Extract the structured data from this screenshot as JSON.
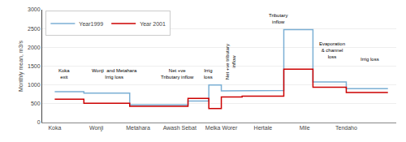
{
  "chart_data": {
    "type": "line",
    "x": [
      0,
      0.7,
      0.7,
      1.8,
      1.8,
      3.2,
      3.2,
      3.7,
      3.7,
      4.0,
      4.0,
      4.5,
      4.5,
      5.5,
      5.5,
      6.2,
      6.2,
      7.0,
      7.0,
      8.0
    ],
    "series": [
      {
        "name": "Year1999",
        "color": "#7bafd4",
        "values": [
          820,
          820,
          780,
          780,
          470,
          470,
          570,
          570,
          1000,
          1000,
          840,
          840,
          850,
          850,
          2470,
          2470,
          1080,
          1080,
          900,
          900
        ]
      },
      {
        "name": "Year 2001",
        "color": "#cc0000",
        "values": [
          620,
          620,
          510,
          510,
          430,
          430,
          640,
          640,
          370,
          370,
          680,
          680,
          700,
          700,
          1420,
          1420,
          940,
          940,
          800,
          800
        ]
      }
    ],
    "ylabel": "Monthly mean, m3/s",
    "ylim": [
      0,
      3000
    ],
    "yticks": [
      0,
      500,
      1000,
      1500,
      2000,
      2500,
      3000
    ],
    "xlim": [
      -0.3,
      8.2
    ],
    "xticks": [
      {
        "value": 0,
        "label": "Koka"
      },
      {
        "value": 1,
        "label": "Wonji"
      },
      {
        "value": 2,
        "label": "Metahara"
      },
      {
        "value": 3,
        "label": "Awash Sebat"
      },
      {
        "value": 4,
        "label": "Melka Worer"
      },
      {
        "value": 5,
        "label": "Hertale"
      },
      {
        "value": 6,
        "label": "Mile"
      },
      {
        "value": 7,
        "label": "Tendaho"
      }
    ],
    "annotations": [
      {
        "text": "Koka\nexit",
        "x": 0.05,
        "y": 1480
      },
      {
        "text": "Wonji  and Metahara\nIrrig loss",
        "x": 0.85,
        "y": 1480
      },
      {
        "text": "Net +ve\nTributary inflow",
        "x": 2.5,
        "y": 1480
      },
      {
        "text": "Irrig\nloss",
        "x": 3.55,
        "y": 1480
      },
      {
        "text": "Net +ve tributary\ninflow",
        "x": 4.05,
        "y": 1100
      },
      {
        "text": "Tributary\ninflow",
        "x": 5.1,
        "y": 2950
      },
      {
        "text": "Evaporation\n& channel\nloss",
        "x": 6.3,
        "y": 2200
      },
      {
        "text": "Irrig loss",
        "x": 7.3,
        "y": 1800
      }
    ],
    "grid": true,
    "legend": "upper left"
  }
}
